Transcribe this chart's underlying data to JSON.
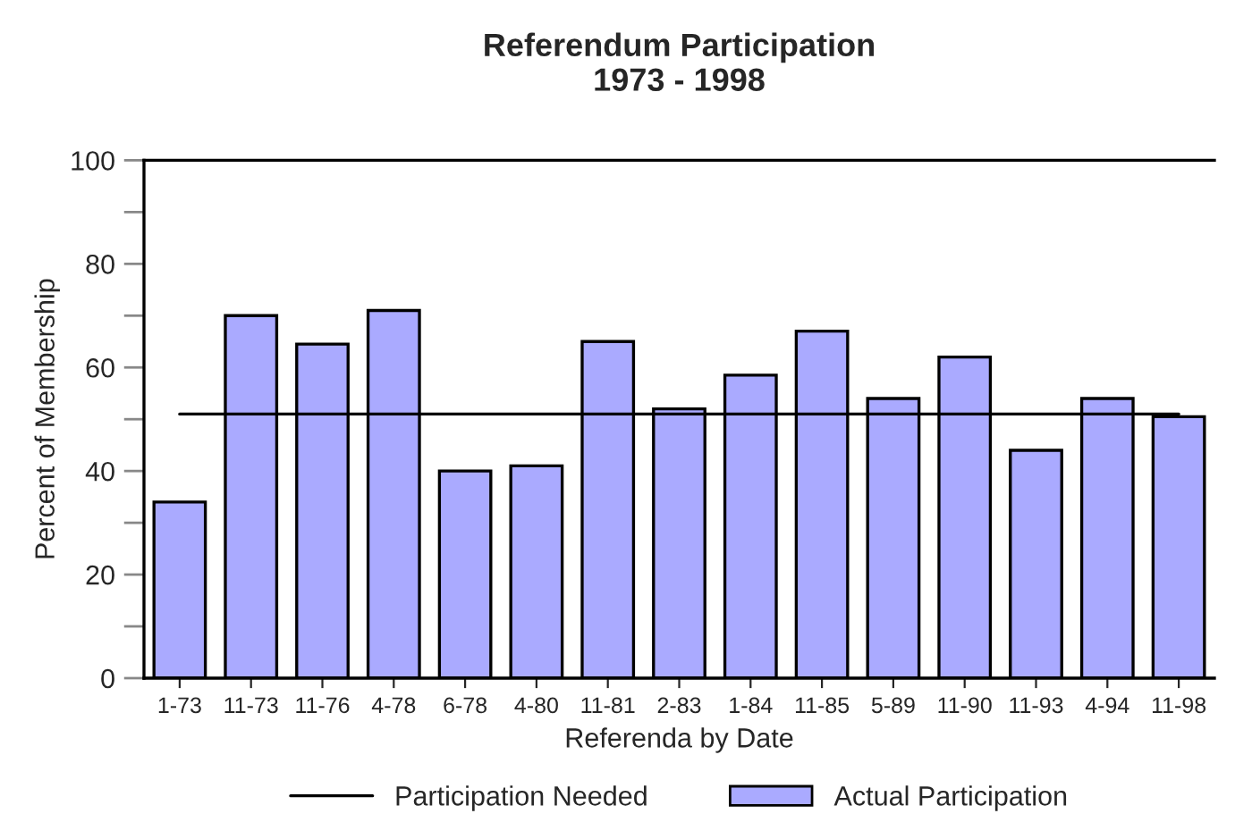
{
  "chart_data": {
    "type": "bar",
    "title": "Referendum Participation\n1973 - 1998",
    "xlabel": "Referenda by Date",
    "ylabel": "Percent of Membership",
    "categories": [
      "1-73",
      "11-73",
      "11-76",
      "4-78",
      "6-78",
      "4-80",
      "11-81",
      "2-83",
      "1-84",
      "11-85",
      "5-89",
      "11-90",
      "11-93",
      "4-94",
      "11-98"
    ],
    "series": [
      {
        "name": "Participation Needed",
        "type": "line",
        "color": "#000000",
        "values": [
          51,
          51,
          51,
          51,
          51,
          51,
          51,
          51,
          51,
          51,
          51,
          51,
          51,
          51,
          51
        ]
      },
      {
        "name": "Actual Participation",
        "color": "#aaaaff",
        "values": [
          34,
          70,
          64.5,
          71,
          40,
          41,
          65,
          52,
          58.5,
          67,
          54,
          62,
          44,
          54,
          50.5
        ]
      }
    ],
    "ylim": [
      0,
      100
    ],
    "yticks": [
      0,
      {
        "value": 10,
        "label": null
      },
      20,
      {
        "value": 30,
        "label": null
      },
      40,
      {
        "value": 50,
        "label": null
      },
      60,
      {
        "value": 70,
        "label": null
      },
      80,
      {
        "value": 90,
        "label": null
      },
      100
    ],
    "grid": false,
    "legend": "bottom",
    "marker": "none"
  }
}
